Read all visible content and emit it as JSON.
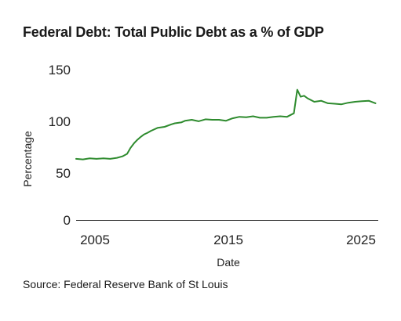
{
  "chart_data": {
    "type": "line",
    "title": "Federal Debt: Total Public Debt as a % of GDP",
    "source": "Source: Federal Reserve Bank of St Louis",
    "xlabel": "Date",
    "ylabel": "Percentage",
    "xlim": [
      2004.0,
      2026.2
    ],
    "ylim": [
      0,
      150
    ],
    "xticks": [
      2005,
      2015,
      2025
    ],
    "yticks": [
      0,
      50,
      100,
      150
    ],
    "grid": false,
    "line_color": "#2e8b2e",
    "series": [
      {
        "x": [
          2004.0,
          2004.5,
          2005.0,
          2005.5,
          2006.0,
          2006.5,
          2007.0,
          2007.4,
          2007.75,
          2008.0,
          2008.25,
          2008.5,
          2008.75,
          2009.0,
          2009.25,
          2009.5,
          2010.0,
          2010.5,
          2011.0,
          2011.25,
          2011.75,
          2012.0,
          2012.5,
          2013.0,
          2013.5,
          2014.0,
          2014.5,
          2015.0,
          2015.5,
          2016.0,
          2016.5,
          2017.0,
          2017.5,
          2018.0,
          2018.5,
          2019.0,
          2019.5,
          2020.0,
          2020.25,
          2020.5,
          2020.75,
          2021.0,
          2021.5,
          2022.0,
          2022.5,
          2023.0,
          2023.5,
          2024.0,
          2024.5,
          2025.0,
          2025.5,
          2026.0
        ],
        "y": [
          61.0,
          60.5,
          61.5,
          61.0,
          61.5,
          61.0,
          62.0,
          63.5,
          66.0,
          72.0,
          76.5,
          80.0,
          83.0,
          85.5,
          87.0,
          89.0,
          92.0,
          93.0,
          95.5,
          96.5,
          97.5,
          99.0,
          100.0,
          98.5,
          100.5,
          100.0,
          100.0,
          99.0,
          101.5,
          103.0,
          102.5,
          103.5,
          102.0,
          102.0,
          103.0,
          103.5,
          103.0,
          106.5,
          130.0,
          123.0,
          124.0,
          121.5,
          118.0,
          119.0,
          116.5,
          116.0,
          115.5,
          117.0,
          118.0,
          118.5,
          119.0,
          116.5
        ]
      }
    ]
  }
}
